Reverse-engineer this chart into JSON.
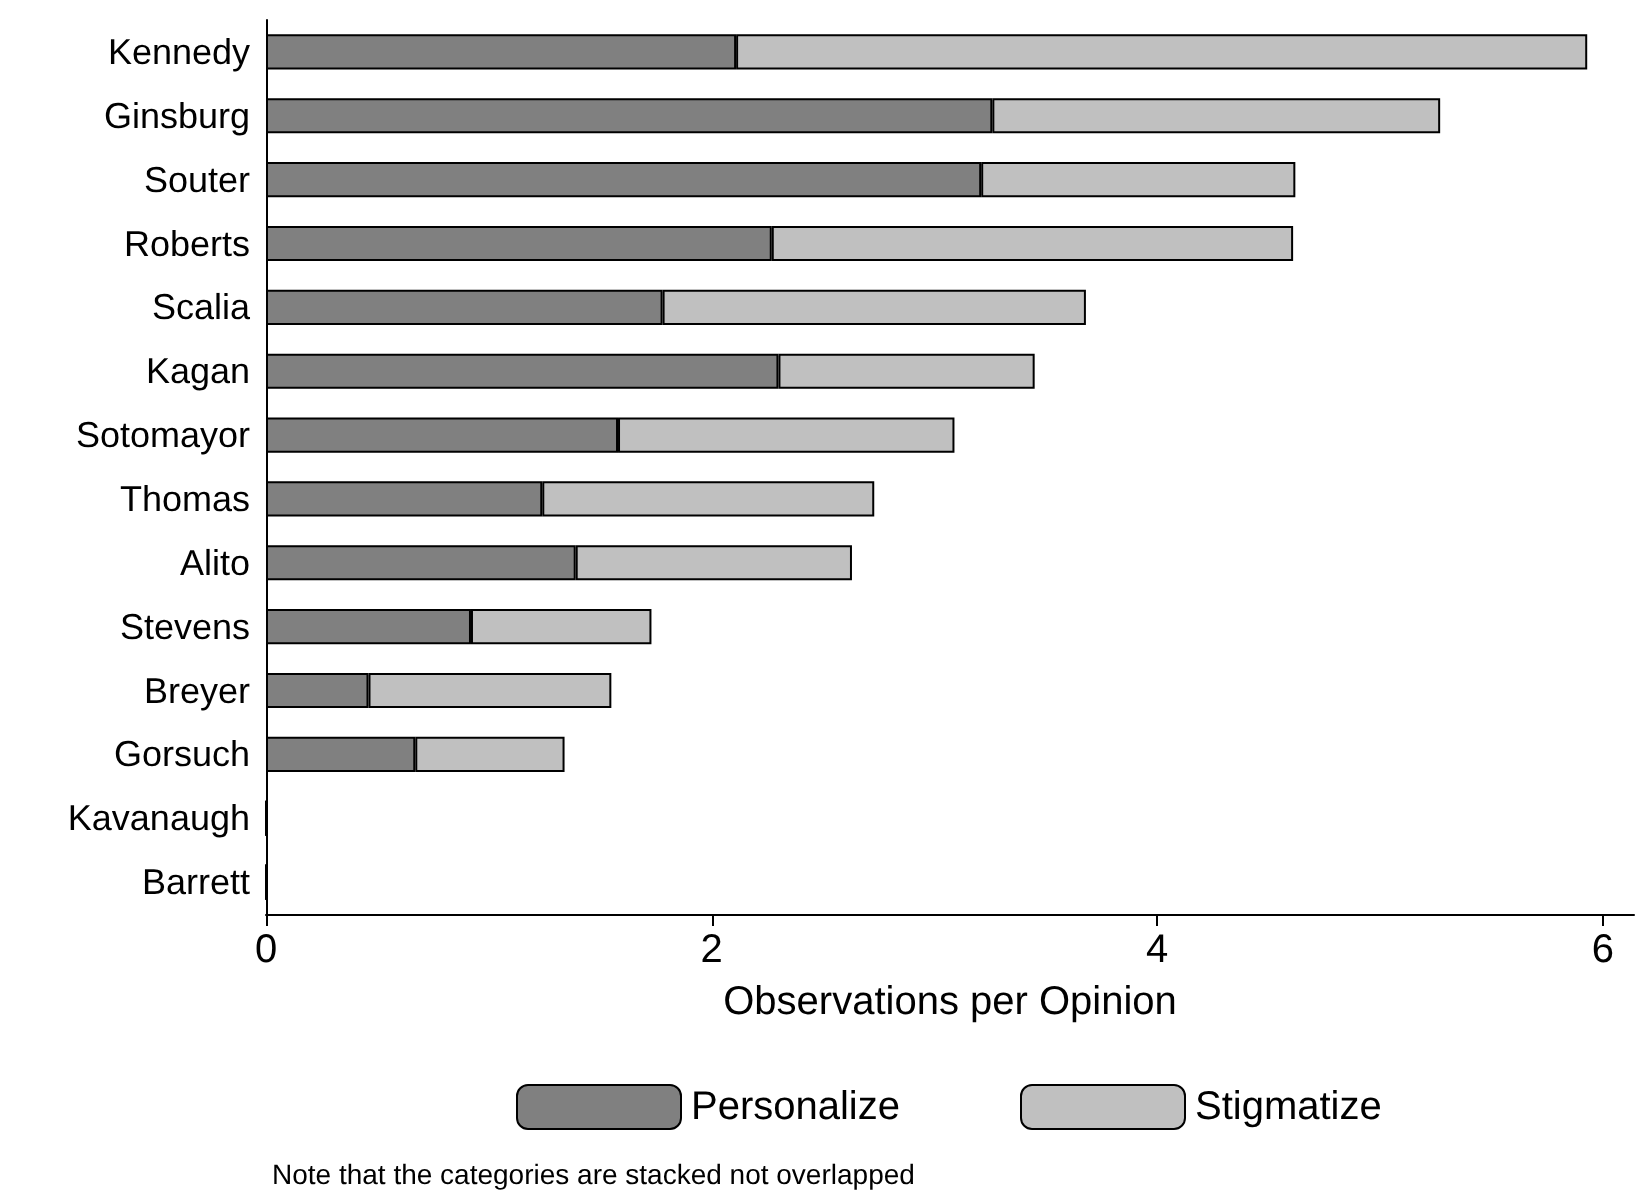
{
  "chart_data": {
    "type": "bar",
    "orientation": "horizontal",
    "stacked": true,
    "xlabel": "Observations per Opinion",
    "categories": [
      "Kennedy",
      "Ginsburg",
      "Souter",
      "Roberts",
      "Scalia",
      "Kagan",
      "Sotomayor",
      "Thomas",
      "Alito",
      "Stevens",
      "Breyer",
      "Gorsuch",
      "Kavanaugh",
      "Barrett"
    ],
    "series": [
      {
        "name": "Personalize",
        "color": "#808080",
        "values": [
          2.11,
          3.26,
          3.21,
          2.27,
          1.78,
          2.3,
          1.58,
          1.24,
          1.39,
          0.92,
          0.46,
          0.67,
          0,
          0
        ]
      },
      {
        "name": "Stigmatize",
        "color": "#c0c0c0",
        "values": [
          3.82,
          2.01,
          1.41,
          2.34,
          1.9,
          1.15,
          1.51,
          1.49,
          1.24,
          0.81,
          1.09,
          0.67,
          0,
          0
        ]
      }
    ],
    "xlim": [
      0,
      6.14
    ],
    "xticks": [
      0,
      2,
      4,
      6
    ],
    "grid": false,
    "legend": "bottom",
    "annotations": [
      "Note that the categories are stacked not overlapped"
    ]
  }
}
